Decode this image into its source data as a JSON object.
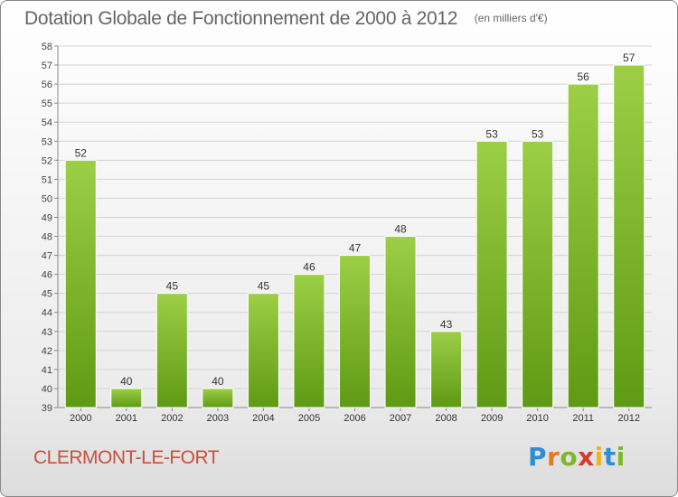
{
  "chart_data": {
    "type": "bar",
    "title": "Dotation Globale de Fonctionnement de 2000 à 2012",
    "unit_note": "(en milliers d'€)",
    "categories": [
      "2000",
      "2001",
      "2002",
      "2003",
      "2004",
      "2005",
      "2006",
      "2007",
      "2008",
      "2009",
      "2010",
      "2011",
      "2012"
    ],
    "values": [
      52,
      40,
      45,
      40,
      45,
      46,
      47,
      48,
      43,
      53,
      53,
      56,
      57
    ],
    "ylim": [
      39,
      58
    ],
    "yticks": [
      39,
      40,
      41,
      42,
      43,
      44,
      45,
      46,
      47,
      48,
      49,
      50,
      51,
      52,
      53,
      54,
      55,
      56,
      57,
      58
    ],
    "grid": true,
    "bar_color_top": "#9ccf45",
    "bar_color_bottom": "#5f9a14"
  },
  "footer": {
    "commune": "CLERMONT-LE-FORT",
    "logo_text": "Proxiti"
  }
}
